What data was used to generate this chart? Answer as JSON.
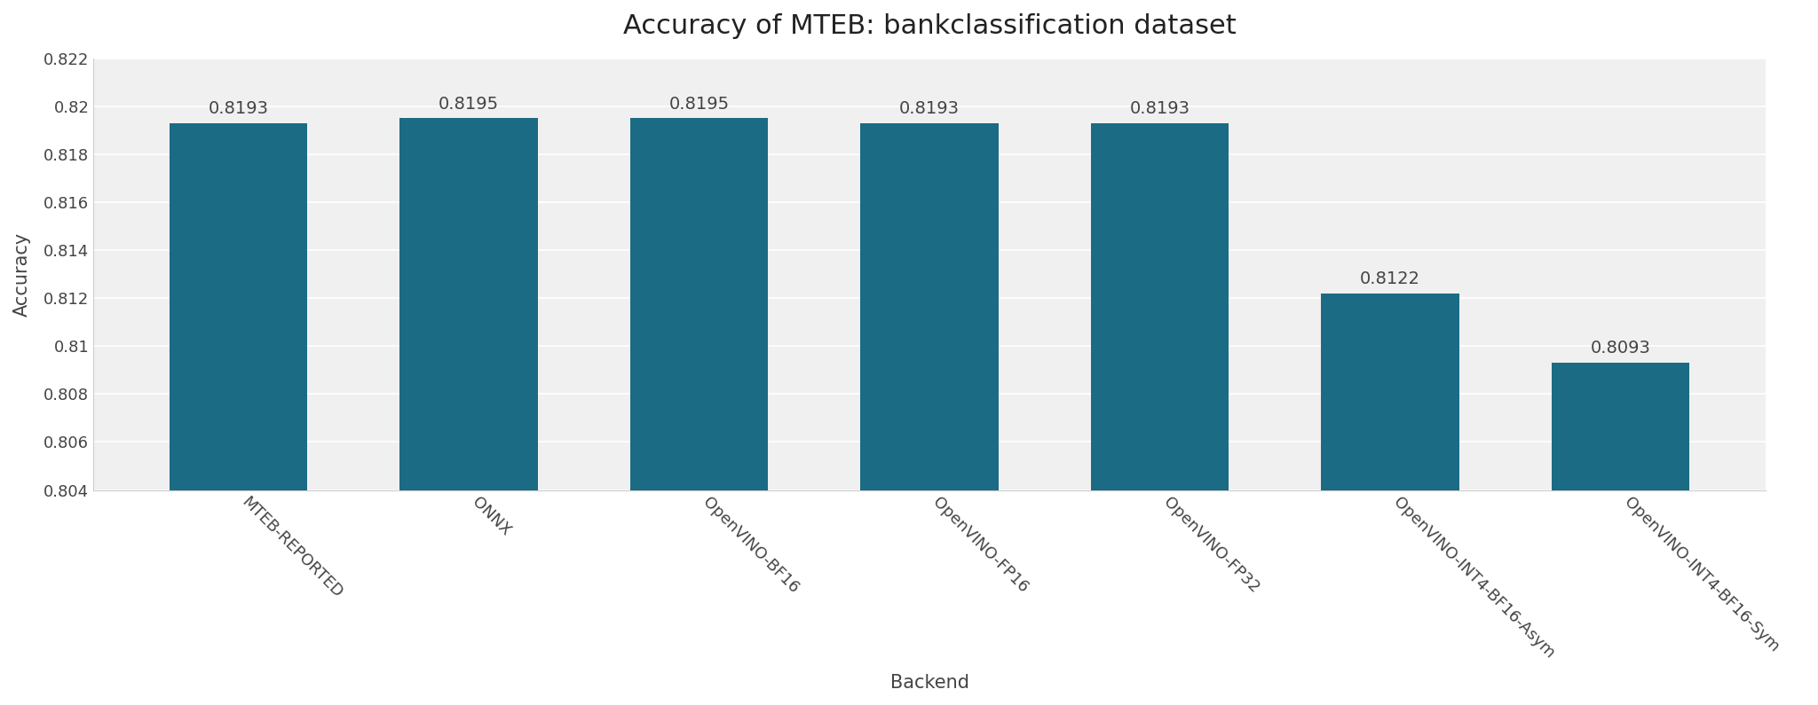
{
  "title": "Accuracy of MTEB: bankclassification dataset",
  "xlabel": "Backend",
  "ylabel": "Accuracy",
  "categories": [
    "MTEB-REPORTED",
    "ONNX",
    "OpenVINO-BF16",
    "OpenVINO-FP16",
    "OpenVINO-FP32",
    "OpenVINO-INT4-BF16-Asym",
    "OpenVINO-INT4-BF16-Sym"
  ],
  "values": [
    0.8193,
    0.8195,
    0.8195,
    0.8193,
    0.8193,
    0.8122,
    0.8093
  ],
  "bar_color": "#1b6b85",
  "ylim": [
    0.804,
    0.822
  ],
  "yticks": [
    0.804,
    0.806,
    0.808,
    0.81,
    0.812,
    0.814,
    0.816,
    0.818,
    0.82,
    0.822
  ],
  "background_color": "#ffffff",
  "plot_bg_color": "#f0f0f0",
  "grid_color": "#ffffff",
  "title_fontsize": 22,
  "label_fontsize": 15,
  "tick_fontsize": 13,
  "annotation_fontsize": 14,
  "bar_width": 0.6
}
